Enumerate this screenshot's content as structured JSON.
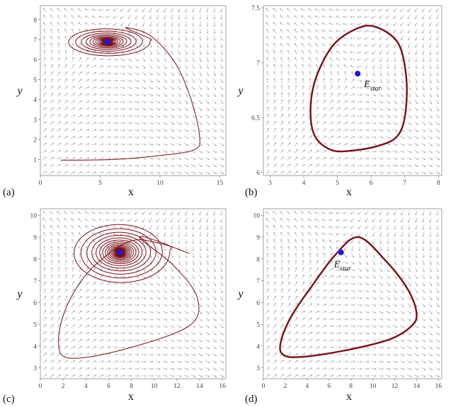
{
  "colors": {
    "trajectory": "#7a0f16",
    "equilibrium": "#1a17e6",
    "field": "#b8b8b8",
    "axis": "#888888"
  },
  "chart_data": [
    {
      "panel": "(a)",
      "type": "line",
      "xlabel": "x",
      "ylabel": "y",
      "xlim": [
        0,
        15.5
      ],
      "ylim": [
        0.2,
        8.7
      ],
      "xticks": [
        0,
        5,
        10,
        15
      ],
      "yticks": [
        1,
        2,
        3,
        4,
        5,
        6,
        7,
        8
      ],
      "equilibrium": {
        "x": 5.6,
        "y": 6.9,
        "label": ""
      },
      "series": [
        {
          "kind": "spiral",
          "start": [
            1.7,
            0.97
          ],
          "points": [
            [
              1.7,
              0.97
            ],
            [
              6,
              1.0
            ],
            [
              10,
              1.2
            ],
            [
              12.9,
              1.5
            ],
            [
              13.3,
              2.2
            ],
            [
              12.6,
              4
            ],
            [
              11.3,
              5.8
            ],
            [
              9.2,
              7.2
            ],
            [
              7.1,
              7.6
            ]
          ],
          "rings": 16,
          "r0x": 3.6,
          "r0y": 0.75,
          "decay": 0.82
        }
      ]
    },
    {
      "panel": "(b)",
      "type": "line",
      "xlabel": "x",
      "ylabel": "y",
      "xlim": [
        2.8,
        8.1
      ],
      "ylim": [
        5.97,
        7.52
      ],
      "xticks": [
        3,
        4,
        5,
        6,
        7,
        8
      ],
      "yticks": [
        6,
        6.5,
        7,
        7.5
      ],
      "equilibrium": {
        "x": 5.6,
        "y": 6.9,
        "label": "E",
        "sub": "star"
      },
      "series": [
        {
          "kind": "closed",
          "points": [
            [
              6.1,
              7.33
            ],
            [
              6.8,
              7.18
            ],
            [
              7.05,
              6.85
            ],
            [
              7.0,
              6.5
            ],
            [
              6.75,
              6.32
            ],
            [
              6.2,
              6.24
            ],
            [
              5.5,
              6.2
            ],
            [
              4.85,
              6.2
            ],
            [
              4.35,
              6.32
            ],
            [
              4.2,
              6.55
            ],
            [
              4.35,
              6.85
            ],
            [
              4.85,
              7.15
            ],
            [
              5.5,
              7.3
            ]
          ]
        }
      ]
    },
    {
      "panel": "(c)",
      "type": "line",
      "xlabel": "x",
      "ylabel": "y",
      "xlim": [
        0,
        16.3
      ],
      "ylim": [
        2.5,
        10.3
      ],
      "xticks": [
        0,
        2,
        4,
        6,
        8,
        10,
        12,
        14,
        16
      ],
      "yticks": [
        3,
        4,
        5,
        6,
        7,
        8,
        9,
        10
      ],
      "equilibrium": {
        "x": 7.0,
        "y": 8.3,
        "label": ""
      },
      "series": [
        {
          "kind": "spiral",
          "start": [
            13.1,
            8.25
          ],
          "points": [
            [
              13.1,
              8.25
            ],
            [
              10.6,
              8.7
            ],
            [
              7.8,
              8.8
            ],
            [
              4.4,
              7.5
            ],
            [
              2.3,
              5.8
            ],
            [
              1.6,
              4.2
            ],
            [
              2.5,
              3.45
            ],
            [
              7,
              3.8
            ],
            [
              13,
              4.9
            ],
            [
              13.8,
              6.2
            ],
            [
              11.7,
              7.7
            ],
            [
              8.7,
              9.0
            ]
          ],
          "rings": 18,
          "r0x": 4.4,
          "r0y": 1.45,
          "decay": 0.85
        }
      ]
    },
    {
      "panel": "(d)",
      "type": "line",
      "xlabel": "x",
      "ylabel": "y",
      "xlim": [
        0,
        16.3
      ],
      "ylim": [
        2.5,
        10.3
      ],
      "xticks": [
        0,
        2,
        4,
        6,
        8,
        10,
        12,
        14,
        16
      ],
      "yticks": [
        3,
        4,
        5,
        6,
        7,
        8,
        9,
        10
      ],
      "equilibrium": {
        "x": 7.1,
        "y": 8.3,
        "label": "E",
        "sub": "star"
      },
      "series": [
        {
          "kind": "closed",
          "points": [
            [
              8.7,
              9.0
            ],
            [
              11.2,
              7.9
            ],
            [
              13.2,
              6.6
            ],
            [
              14.0,
              5.5
            ],
            [
              13.5,
              4.9
            ],
            [
              11.5,
              4.3
            ],
            [
              7.5,
              3.8
            ],
            [
              3.5,
              3.5
            ],
            [
              1.8,
              3.6
            ],
            [
              1.6,
              4.2
            ],
            [
              2.6,
              5.4
            ],
            [
              4.5,
              6.8
            ],
            [
              6.6,
              8.2
            ]
          ]
        }
      ]
    }
  ]
}
